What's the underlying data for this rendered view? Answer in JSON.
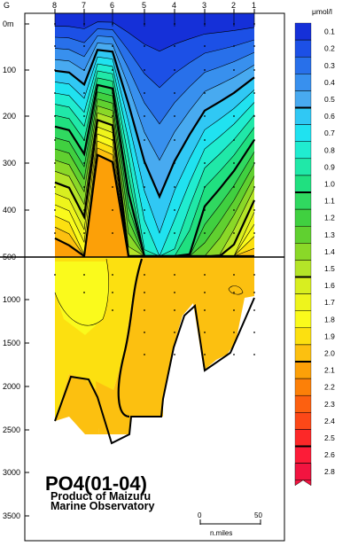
{
  "chart_data": {
    "type": "heatmap",
    "title": "PO4(01-04)",
    "subtitle": [
      "Product of Maizuru",
      "Marine Observatory"
    ],
    "unit": "μmol/l",
    "station_axis_label": "G",
    "stations": [
      "8",
      "7",
      "6",
      "5",
      "4",
      "3",
      "2",
      "1"
    ],
    "depth_ticks_upper": [
      "0m",
      "100",
      "200",
      "300",
      "400"
    ],
    "split_label": "500",
    "depth_ticks_lower": [
      "1000",
      "1500",
      "2000",
      "2500",
      "3000",
      "3500"
    ],
    "colorbar_levels": [
      "0.1",
      "0.2",
      "0.3",
      "0.4",
      "0.5",
      "0.6",
      "0.7",
      "0.8",
      "0.9",
      "1.0",
      "1.1",
      "1.2",
      "1.3",
      "1.4",
      "1.5",
      "1.6",
      "1.7",
      "1.8",
      "1.9",
      "2.0",
      "2.1",
      "2.2",
      "2.3",
      "2.4",
      "2.5",
      "2.6",
      "2.8"
    ],
    "colorbar_colors": [
      "#1530d8",
      "#1c50e6",
      "#2870ea",
      "#3890ee",
      "#48aaf0",
      "#30c8f4",
      "#20e2f0",
      "#20ecd0",
      "#20e8a8",
      "#20e080",
      "#30d860",
      "#40d040",
      "#60d030",
      "#8ad828",
      "#b4e428",
      "#d8ee20",
      "#eef41c",
      "#fafa1c",
      "#fce010",
      "#fcc010",
      "#fca008",
      "#fc8008",
      "#fc6010",
      "#fc4818",
      "#fc2828",
      "#fc1c38",
      "#f21440"
    ],
    "scale_bar": {
      "start": "0",
      "end": "50",
      "unit": "n.miles"
    },
    "bold_contours": [
      "0.5",
      "1.0",
      "1.5",
      "2.0",
      "2.5"
    ]
  }
}
